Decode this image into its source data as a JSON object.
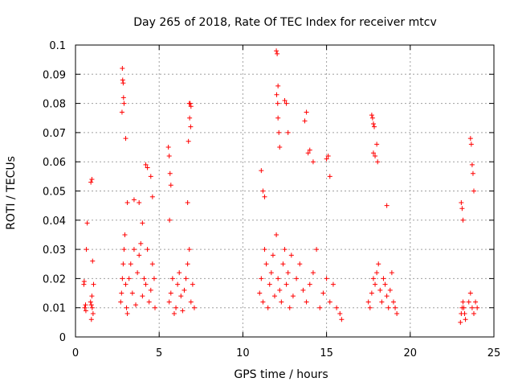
{
  "chart_data": {
    "type": "scatter",
    "title": "Day 265 of 2018, Rate Of TEC Index for receiver mtcv",
    "xlabel": "GPS time / hours",
    "ylabel": "ROTI / TECUs",
    "xlim": [
      0,
      25
    ],
    "ylim": [
      0,
      0.1
    ],
    "x_ticks": [
      "0",
      "5",
      "10",
      "15",
      "20",
      "25"
    ],
    "y_ticks": [
      "0",
      "0.01",
      "0.02",
      "0.03",
      "0.04",
      "0.05",
      "0.06",
      "0.07",
      "0.08",
      "0.09",
      "0.1"
    ],
    "grid": true,
    "marker": "+",
    "color": "#ff0000",
    "series": [
      {
        "x": [
          0.5,
          0.52,
          0.55,
          0.6,
          0.62,
          0.65,
          0.7,
          0.9,
          0.95,
          1.0,
          1.05,
          0.92,
          0.98,
          1.02,
          1.08,
          0.95,
          0.98,
          2.7,
          2.75,
          2.8,
          2.85,
          2.9,
          2.95,
          3.0,
          3.05,
          3.1,
          3.2,
          3.3,
          3.4,
          3.5,
          3.6,
          3.7,
          3.8,
          3.9,
          4.0,
          4.1,
          4.2,
          4.3,
          4.4,
          4.5,
          4.6,
          4.7,
          4.75,
          2.8,
          2.82,
          2.85,
          2.87,
          2.9,
          2.78,
          3.0,
          3.1,
          3.5,
          3.8,
          4.0,
          4.2,
          4.3,
          4.5,
          4.6,
          5.6,
          5.7,
          5.8,
          5.9,
          6.0,
          6.1,
          6.2,
          6.3,
          6.4,
          6.5,
          6.6,
          6.7,
          6.8,
          6.9,
          7.0,
          7.1,
          5.55,
          5.6,
          5.65,
          5.7,
          5.62,
          6.8,
          6.85,
          6.9,
          6.82,
          6.88,
          6.75,
          6.7,
          11.0,
          11.1,
          11.2,
          11.3,
          11.4,
          11.5,
          11.6,
          11.7,
          11.8,
          11.9,
          12.0,
          12.1,
          12.2,
          12.3,
          12.4,
          12.5,
          12.6,
          12.7,
          12.8,
          12.9,
          13.0,
          13.2,
          13.4,
          13.6,
          13.8,
          14.0,
          14.2,
          14.4,
          14.6,
          14.8,
          15.0,
          15.2,
          15.4,
          15.6,
          15.8,
          15.9,
          12.0,
          12.05,
          12.1,
          12.02,
          12.08,
          12.1,
          12.15,
          12.2,
          12.5,
          12.6,
          12.7,
          13.7,
          13.8,
          13.9,
          14.0,
          14.2,
          15.0,
          15.1,
          15.2,
          11.1,
          11.2,
          11.3,
          17.5,
          17.6,
          17.7,
          17.8,
          17.9,
          18.0,
          18.1,
          18.2,
          18.3,
          18.4,
          18.5,
          18.6,
          18.7,
          18.8,
          18.9,
          19.0,
          19.1,
          19.2,
          17.7,
          17.75,
          17.8,
          17.85,
          17.8,
          17.9,
          18.0,
          18.05,
          18.6,
          23.0,
          23.05,
          23.1,
          23.15,
          23.2,
          23.25,
          23.3,
          23.5,
          23.6,
          23.7,
          23.8,
          23.9,
          24.0,
          23.05,
          23.1,
          23.15,
          23.6,
          23.65,
          23.7,
          23.75,
          23.8
        ],
        "y": [
          0.018,
          0.019,
          0.01,
          0.011,
          0.009,
          0.03,
          0.039,
          0.012,
          0.011,
          0.01,
          0.008,
          0.053,
          0.054,
          0.026,
          0.018,
          0.006,
          0.014,
          0.012,
          0.015,
          0.02,
          0.025,
          0.03,
          0.035,
          0.018,
          0.01,
          0.008,
          0.02,
          0.025,
          0.015,
          0.03,
          0.011,
          0.022,
          0.028,
          0.032,
          0.014,
          0.02,
          0.018,
          0.03,
          0.012,
          0.016,
          0.025,
          0.02,
          0.01,
          0.092,
          0.088,
          0.087,
          0.082,
          0.08,
          0.077,
          0.068,
          0.046,
          0.047,
          0.046,
          0.039,
          0.059,
          0.058,
          0.055,
          0.048,
          0.012,
          0.015,
          0.02,
          0.008,
          0.01,
          0.018,
          0.022,
          0.014,
          0.009,
          0.016,
          0.02,
          0.025,
          0.03,
          0.012,
          0.018,
          0.01,
          0.065,
          0.062,
          0.056,
          0.052,
          0.04,
          0.08,
          0.08,
          0.079,
          0.075,
          0.072,
          0.067,
          0.046,
          0.015,
          0.02,
          0.012,
          0.03,
          0.025,
          0.01,
          0.018,
          0.022,
          0.028,
          0.014,
          0.035,
          0.02,
          0.016,
          0.012,
          0.025,
          0.03,
          0.018,
          0.022,
          0.01,
          0.028,
          0.014,
          0.02,
          0.025,
          0.016,
          0.012,
          0.018,
          0.022,
          0.03,
          0.01,
          0.015,
          0.02,
          0.012,
          0.018,
          0.01,
          0.008,
          0.006,
          0.098,
          0.097,
          0.086,
          0.083,
          0.08,
          0.075,
          0.07,
          0.065,
          0.081,
          0.08,
          0.07,
          0.074,
          0.077,
          0.063,
          0.064,
          0.06,
          0.061,
          0.062,
          0.055,
          0.057,
          0.05,
          0.048,
          0.012,
          0.01,
          0.015,
          0.02,
          0.018,
          0.022,
          0.025,
          0.016,
          0.012,
          0.02,
          0.018,
          0.014,
          0.01,
          0.016,
          0.022,
          0.012,
          0.01,
          0.008,
          0.076,
          0.075,
          0.073,
          0.072,
          0.063,
          0.062,
          0.066,
          0.06,
          0.045,
          0.005,
          0.008,
          0.01,
          0.012,
          0.01,
          0.008,
          0.006,
          0.012,
          0.015,
          0.01,
          0.008,
          0.012,
          0.01,
          0.046,
          0.044,
          0.04,
          0.068,
          0.066,
          0.059,
          0.056,
          0.05
        ]
      }
    ]
  }
}
